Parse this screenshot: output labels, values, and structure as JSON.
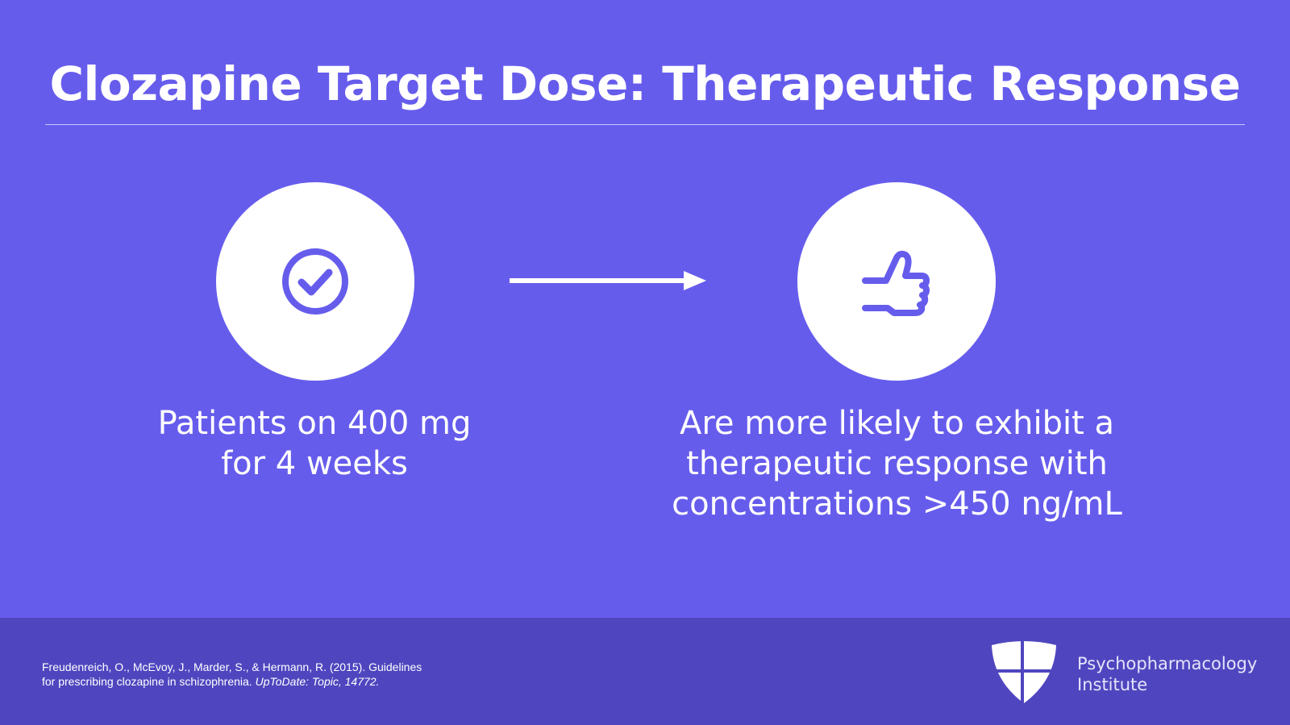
{
  "title": "Clozapine Target Dose: Therapeutic Response",
  "left": {
    "icon": "check-circle-icon",
    "caption_line1": "Patients on 400 mg",
    "caption_line2": "for 4 weeks"
  },
  "arrow_icon": "arrow-right-icon",
  "right": {
    "icon": "thumbs-up-icon",
    "caption_line1": "Are more likely to exhibit a",
    "caption_line2": "therapeutic response with",
    "caption_line3": "concentrations >450 ng/mL"
  },
  "footer": {
    "citation_line1": "Freudenreich, O., McEvoy, J., Marder, S., & Hermann, R. (2015). Guidelines",
    "citation_line2": "for prescribing clozapine in schizophrenia. ",
    "citation_italic": "UpToDate: Topic, 14772.",
    "brand_line1": "Psychopharmacology",
    "brand_line2": "Institute"
  },
  "colors": {
    "background": "#665cec",
    "footer": "#4f46bf",
    "icon": "#665cec"
  }
}
